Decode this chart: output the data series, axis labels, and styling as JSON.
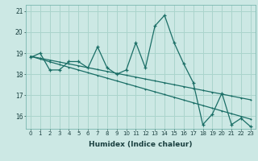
{
  "xlabel": "Humidex (Indice chaleur)",
  "ylabel": "",
  "bg_color": "#cce8e4",
  "grid_color": "#aad4cc",
  "line_color": "#1a6e66",
  "xlim": [
    -0.5,
    23.5
  ],
  "ylim": [
    15.4,
    21.3
  ],
  "yticks": [
    16,
    17,
    18,
    19,
    20,
    21
  ],
  "xticks": [
    0,
    1,
    2,
    3,
    4,
    5,
    6,
    7,
    8,
    9,
    10,
    11,
    12,
    13,
    14,
    15,
    16,
    17,
    18,
    19,
    20,
    21,
    22,
    23
  ],
  "series1": [
    18.8,
    19.0,
    18.2,
    18.2,
    18.6,
    18.6,
    18.3,
    19.3,
    18.3,
    18.0,
    18.2,
    19.5,
    18.3,
    20.3,
    20.8,
    19.5,
    18.5,
    17.6,
    15.6,
    16.1,
    17.1,
    15.6,
    15.9,
    15.5
  ],
  "trend1": [
    18.85,
    18.76,
    18.67,
    18.58,
    18.49,
    18.4,
    18.31,
    18.22,
    18.13,
    18.04,
    17.95,
    17.86,
    17.77,
    17.68,
    17.59,
    17.5,
    17.41,
    17.32,
    17.23,
    17.14,
    17.05,
    16.96,
    16.87,
    16.78
  ],
  "trend2": [
    18.85,
    18.72,
    18.59,
    18.46,
    18.33,
    18.2,
    18.07,
    17.94,
    17.81,
    17.68,
    17.55,
    17.42,
    17.29,
    17.16,
    17.03,
    16.9,
    16.77,
    16.64,
    16.51,
    16.38,
    16.25,
    16.12,
    15.99,
    15.86
  ]
}
